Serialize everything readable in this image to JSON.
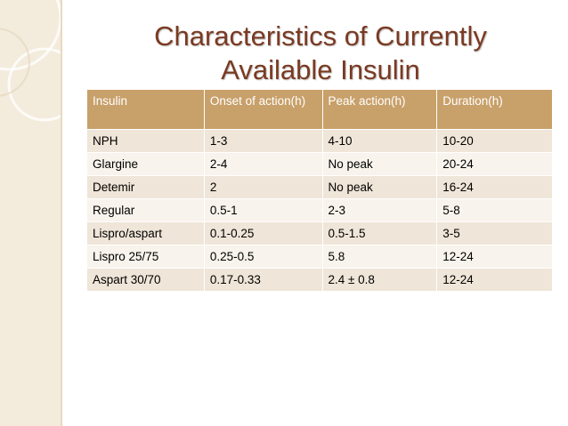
{
  "slide": {
    "title_line1": "Characteristics of Currently",
    "title_line2": "Available Insulin",
    "colors": {
      "title": "#7a3a22",
      "header_bg": "#c8a06a",
      "row_odd": "#efe5d8",
      "row_even": "#f8f3ec",
      "side_panel": "#f3ebdc"
    }
  },
  "table": {
    "headers": [
      "Insulin",
      "Onset of action(h)",
      "Peak action(h)",
      "Duration(h)"
    ],
    "rows": [
      [
        "NPH",
        "1-3",
        "4-10",
        "10-20"
      ],
      [
        "Glargine",
        "2-4",
        "No peak",
        "20-24"
      ],
      [
        "Detemir",
        "2",
        "No peak",
        "16-24"
      ],
      [
        "Regular",
        "0.5-1",
        "2-3",
        "5-8"
      ],
      [
        "Lispro/aspart",
        "0.1-0.25",
        "0.5-1.5",
        "3-5"
      ],
      [
        "Lispro 25/75",
        "0.25-0.5",
        "5.8",
        "12-24"
      ],
      [
        "Aspart 30/70",
        "0.17-0.33",
        "2.4 ± 0.8",
        "12-24"
      ]
    ]
  }
}
